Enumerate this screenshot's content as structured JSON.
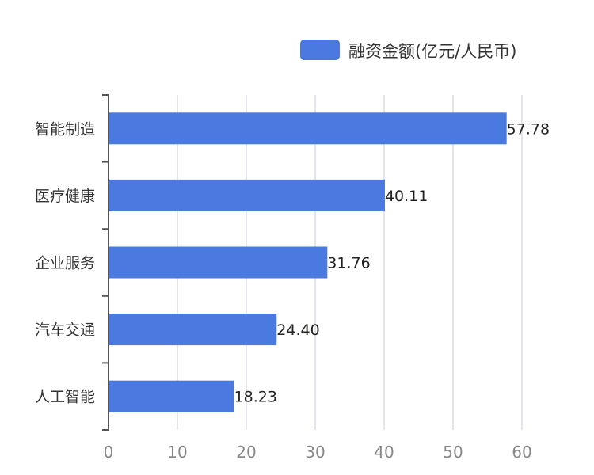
{
  "chart_data": {
    "type": "bar",
    "orientation": "horizontal",
    "categories": [
      "智能制造",
      "医疗健康",
      "企业服务",
      "汽车交通",
      "人工智能"
    ],
    "series": [
      {
        "name": "融资金额(亿元/人民币)",
        "values": [
          57.78,
          40.11,
          31.76,
          24.4,
          18.23
        ]
      }
    ],
    "data_labels": [
      "57.78",
      "40.11",
      "31.76",
      "24.40",
      "18.23"
    ],
    "x_ticks": [
      "0",
      "10",
      "20",
      "30",
      "40",
      "50",
      "60"
    ],
    "xlim": [
      0,
      60
    ],
    "grid": true,
    "legend_position": "top-right",
    "colors": {
      "bar": "#4a7ae0",
      "grid": "#d9dde3",
      "axis": "#555555",
      "tick_text": "#888888",
      "category_text": "#333333",
      "label_text": "#222222"
    }
  }
}
